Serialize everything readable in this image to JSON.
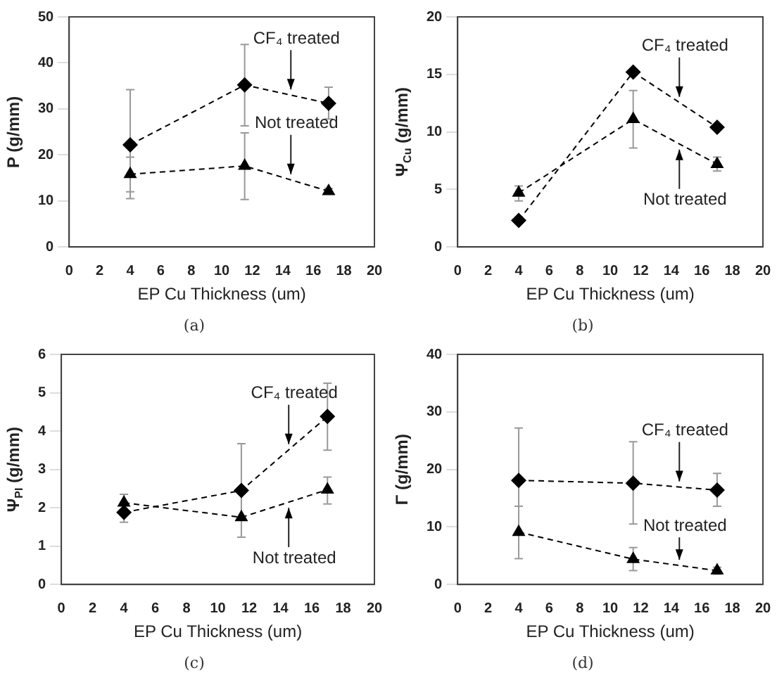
{
  "chart_data": [
    {
      "type": "line",
      "ylabel": "P (g/mm)",
      "xlabel": "EP Cu Thickness (um)",
      "annotations": [
        "(a)"
      ],
      "xlim": [
        0,
        20
      ],
      "xticks": [
        0,
        2,
        4,
        6,
        8,
        10,
        12,
        14,
        16,
        18,
        20
      ],
      "ylim": [
        0,
        50
      ],
      "yticks": [
        0,
        10,
        20,
        30,
        40,
        50
      ],
      "grid": false,
      "legend": false,
      "line_style": "dashed",
      "x": [
        4,
        11.5,
        17
      ],
      "series": [
        {
          "name": "CF₄ treated",
          "color": "#000000",
          "marker": "diamond",
          "values": [
            22.2,
            35.2,
            31.2
          ],
          "errors": [
            [
              10.5,
              34.2
            ],
            [
              26.3,
              44
            ],
            [
              27.8,
              34.7
            ]
          ]
        },
        {
          "name": "Not treated",
          "color": "#000000",
          "marker": "triangle",
          "values": [
            15.8,
            17.6,
            12.1
          ],
          "errors": [
            [
              12,
              19.5
            ],
            [
              10.3,
              24.8
            ],
            [
              11.5,
              12.7
            ]
          ]
        }
      ]
    },
    {
      "type": "line",
      "ylabel": "Ψ$_{Cu}$ (g/mm)",
      "xlabel": "EP Cu Thickness (um)",
      "annotations": [
        "(b)"
      ],
      "xlim": [
        0,
        20
      ],
      "xticks": [
        0,
        2,
        4,
        6,
        8,
        10,
        12,
        14,
        16,
        18,
        20
      ],
      "ylim": [
        0,
        20
      ],
      "yticks": [
        0,
        5,
        10,
        15,
        20
      ],
      "grid": false,
      "legend": false,
      "line_style": "dashed",
      "x": [
        4,
        11.5,
        17
      ],
      "series": [
        {
          "name": "CF₄ treated",
          "color": "#000000",
          "marker": "diamond",
          "values": [
            2.3,
            15.2,
            10.4
          ]
        },
        {
          "name": "Not treated",
          "color": "#000000",
          "marker": "triangle",
          "values": [
            4.7,
            11.1,
            7.2
          ],
          "errors": [
            [
              4,
              5.3
            ],
            [
              8.6,
              13.6
            ],
            [
              6.6,
              7.8
            ]
          ]
        }
      ]
    },
    {
      "type": "line",
      "ylabel": "Ψ$_{PI}$ (g/mm)",
      "xlabel": "EP Cu Thickness (um)",
      "annotations": [
        "(c)"
      ],
      "xlim": [
        0,
        20
      ],
      "xticks": [
        0,
        2,
        4,
        6,
        8,
        10,
        12,
        14,
        16,
        18,
        20
      ],
      "ylim": [
        0,
        6
      ],
      "yticks": [
        0,
        1,
        2,
        3,
        4,
        5,
        6
      ],
      "grid": false,
      "legend": false,
      "line_style": "dashed",
      "x": [
        4,
        11.5,
        17
      ],
      "series": [
        {
          "name": "CF₄ treated",
          "color": "#000000",
          "marker": "diamond",
          "values": [
            1.88,
            2.45,
            4.38
          ],
          "errors": [
            [
              1.62,
              2.15
            ],
            [
              1.23,
              3.67
            ],
            [
              3.5,
              5.25
            ]
          ]
        },
        {
          "name": "Not treated",
          "color": "#000000",
          "marker": "triangle",
          "values": [
            2.13,
            1.75,
            2.47
          ],
          "errors": [
            [
              1.9,
              2.35
            ],
            null,
            [
              2.1,
              2.8
            ]
          ]
        }
      ]
    },
    {
      "type": "line",
      "ylabel": "Γ (g/mm)",
      "xlabel": "EP Cu Thickness (um)",
      "annotations": [
        "(d)"
      ],
      "xlim": [
        0,
        20
      ],
      "xticks": [
        0,
        2,
        4,
        6,
        8,
        10,
        12,
        14,
        16,
        18,
        20
      ],
      "ylim": [
        0,
        40
      ],
      "yticks": [
        0,
        10,
        20,
        30,
        40
      ],
      "grid": false,
      "legend": false,
      "line_style": "dashed",
      "x": [
        4,
        11.5,
        17
      ],
      "series": [
        {
          "name": "CF₄ treated",
          "color": "#000000",
          "marker": "diamond",
          "values": [
            18.1,
            17.6,
            16.4
          ],
          "errors": [
            [
              9,
              27.2
            ],
            [
              10.5,
              24.8
            ],
            [
              13.6,
              19.3
            ]
          ]
        },
        {
          "name": "Not treated",
          "color": "#000000",
          "marker": "triangle",
          "values": [
            9.1,
            4.4,
            2.4
          ],
          "errors": [
            [
              4.5,
              13.6
            ],
            [
              2.4,
              6.4
            ],
            [
              1.8,
              3
            ]
          ]
        }
      ]
    }
  ]
}
